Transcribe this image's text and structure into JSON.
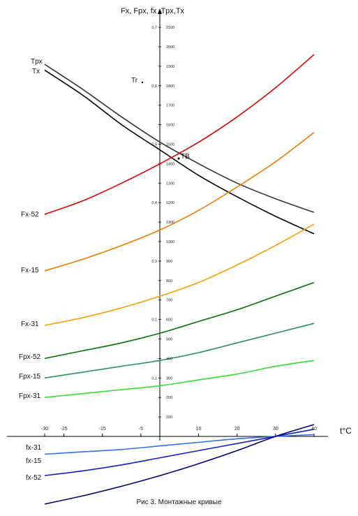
{
  "caption": "Рис 3. Монтажные кривые",
  "chart_data": {
    "type": "line",
    "title": "",
    "xlabel": "t°C",
    "ylabel": "Fx, Fpx, fx ,Tpx,Tx",
    "x_ticks": [
      -30,
      -25,
      -15,
      -5,
      10,
      20,
      30,
      40
    ],
    "xlim": [
      -30,
      40
    ],
    "left_axis_ticks": [
      "0,1",
      "0,2",
      "0,3",
      "0,4",
      "0,5",
      "0,6",
      "0,7"
    ],
    "right_axis_ticks": [
      "100",
      "200",
      "300",
      "400",
      "500",
      "600",
      "700",
      "800",
      "900",
      "1000",
      "1100",
      "1200",
      "1300",
      "1400",
      "1500",
      "1600",
      "1700",
      "1800",
      "1900",
      "2000",
      "2100"
    ],
    "ylim_right": [
      0,
      2100
    ],
    "ylim_left": [
      0,
      0.7
    ],
    "grid": false,
    "point_labels": [
      "Tr",
      "TB"
    ],
    "points": [
      {
        "name": "Tr",
        "x": -5,
        "y": 1800
      },
      {
        "name": "TB",
        "x": 5,
        "y": 1460
      }
    ],
    "series": [
      {
        "name": "Tpx",
        "color": "#333333",
        "x": [
          -30,
          -20,
          -10,
          0,
          10,
          20,
          30,
          40
        ],
        "y": [
          1910,
          1780,
          1640,
          1510,
          1400,
          1300,
          1220,
          1150
        ]
      },
      {
        "name": "Tx",
        "color": "#000000",
        "x": [
          -30,
          -20,
          -10,
          0,
          10,
          20,
          30,
          40
        ],
        "y": [
          1880,
          1750,
          1600,
          1470,
          1340,
          1230,
          1130,
          1040
        ]
      },
      {
        "name": "Fx-52",
        "color": "#e00000",
        "x": [
          -30,
          -20,
          -10,
          0,
          10,
          20,
          30,
          40
        ],
        "y": [
          1140,
          1210,
          1300,
          1400,
          1510,
          1640,
          1790,
          1960
        ]
      },
      {
        "name": "Fx-15",
        "color": "#f07800",
        "x": [
          -30,
          -20,
          -10,
          0,
          10,
          20,
          30,
          40
        ],
        "y": [
          850,
          910,
          980,
          1060,
          1160,
          1280,
          1410,
          1560
        ]
      },
      {
        "name": "Fx-31",
        "color": "#f5a000",
        "x": [
          -30,
          -20,
          -10,
          0,
          10,
          20,
          30,
          40
        ],
        "y": [
          570,
          610,
          660,
          720,
          790,
          880,
          980,
          1090
        ]
      },
      {
        "name": "Fpx-52",
        "color": "#007000",
        "x": [
          -30,
          -20,
          -10,
          0,
          10,
          20,
          30,
          40
        ],
        "y": [
          400,
          440,
          480,
          530,
          590,
          650,
          720,
          790
        ]
      },
      {
        "name": "Fpx-15",
        "color": "#2a9060",
        "x": [
          -30,
          -20,
          -10,
          0,
          10,
          20,
          30,
          40
        ],
        "y": [
          300,
          330,
          360,
          390,
          430,
          480,
          530,
          580
        ]
      },
      {
        "name": "Fpx-31",
        "color": "#33dd33",
        "x": [
          -30,
          -20,
          -10,
          0,
          10,
          20,
          30,
          40
        ],
        "y": [
          200,
          220,
          240,
          260,
          290,
          320,
          360,
          390
        ]
      },
      {
        "name": "fx-31",
        "color": "#3070e8",
        "x": [
          -30,
          -20,
          -10,
          0,
          10,
          20,
          30,
          40
        ],
        "y": [
          -0.015,
          -0.013,
          -0.011,
          -0.008,
          -0.005,
          -0.002,
          0.0,
          0.0015
        ]
      },
      {
        "name": "fx-15",
        "color": "#1020c0",
        "x": [
          -30,
          -20,
          -10,
          0,
          10,
          20,
          30,
          40
        ],
        "y": [
          -0.033,
          -0.029,
          -0.024,
          -0.018,
          -0.012,
          -0.006,
          0.0,
          0.006
        ]
      },
      {
        "name": "fx-52",
        "color": "#000070",
        "x": [
          -30,
          -20,
          -10,
          0,
          10,
          20,
          30,
          40
        ],
        "y": [
          -0.057,
          -0.05,
          -0.042,
          -0.033,
          -0.023,
          -0.012,
          0.0,
          0.01
        ]
      }
    ]
  }
}
